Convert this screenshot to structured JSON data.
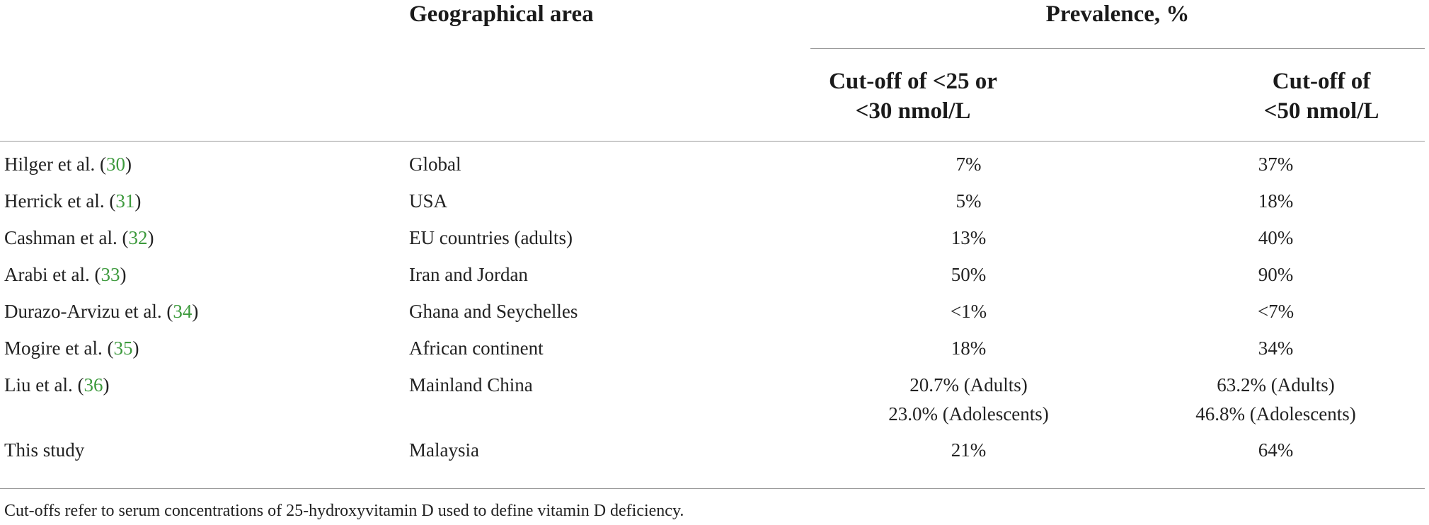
{
  "header": {
    "geo_label": "Geographical area",
    "prevalence_label": "Prevalence, %",
    "cutoff1_line1": "Cut-off of <25 or",
    "cutoff1_line2": "<30 nmol/L",
    "cutoff2_line1": "Cut-off of",
    "cutoff2_line2": "<50 nmol/L"
  },
  "rows": [
    {
      "author": "Hilger et al. (",
      "ref": "30",
      "close": ")",
      "area": "Global",
      "p1": "7%",
      "p2": "37%"
    },
    {
      "author": "Herrick et al. (",
      "ref": "31",
      "close": ")",
      "area": "USA",
      "p1": "5%",
      "p2": "18%"
    },
    {
      "author": "Cashman et al. (",
      "ref": "32",
      "close": ")",
      "area": "EU countries (adults)",
      "p1": "13%",
      "p2": "40%"
    },
    {
      "author": "Arabi et al. (",
      "ref": "33",
      "close": ")",
      "area": "Iran and Jordan",
      "p1": "50%",
      "p2": "90%"
    },
    {
      "author": "Durazo-Arvizu et al. (",
      "ref": "34",
      "close": ")",
      "area": "Ghana and Seychelles",
      "p1": "<1%",
      "p2": "<7%"
    },
    {
      "author": "Mogire et al. (",
      "ref": "35",
      "close": ")",
      "area": "African continent",
      "p1": "18%",
      "p2": "34%"
    },
    {
      "author": "Liu et al. (",
      "ref": "36",
      "close": ")",
      "area": "Mainland China",
      "p1": "20.7% (Adults)",
      "p1b": "23.0% (Adolescents)",
      "p2": "63.2% (Adults)",
      "p2b": "46.8% (Adolescents)"
    },
    {
      "author": "This study",
      "area": "Malaysia",
      "p1": "21%",
      "p2": "64%"
    }
  ],
  "footnote": "Cut-offs refer to serum concentrations of 25-hydroxyvitamin D used to define vitamin D deficiency."
}
